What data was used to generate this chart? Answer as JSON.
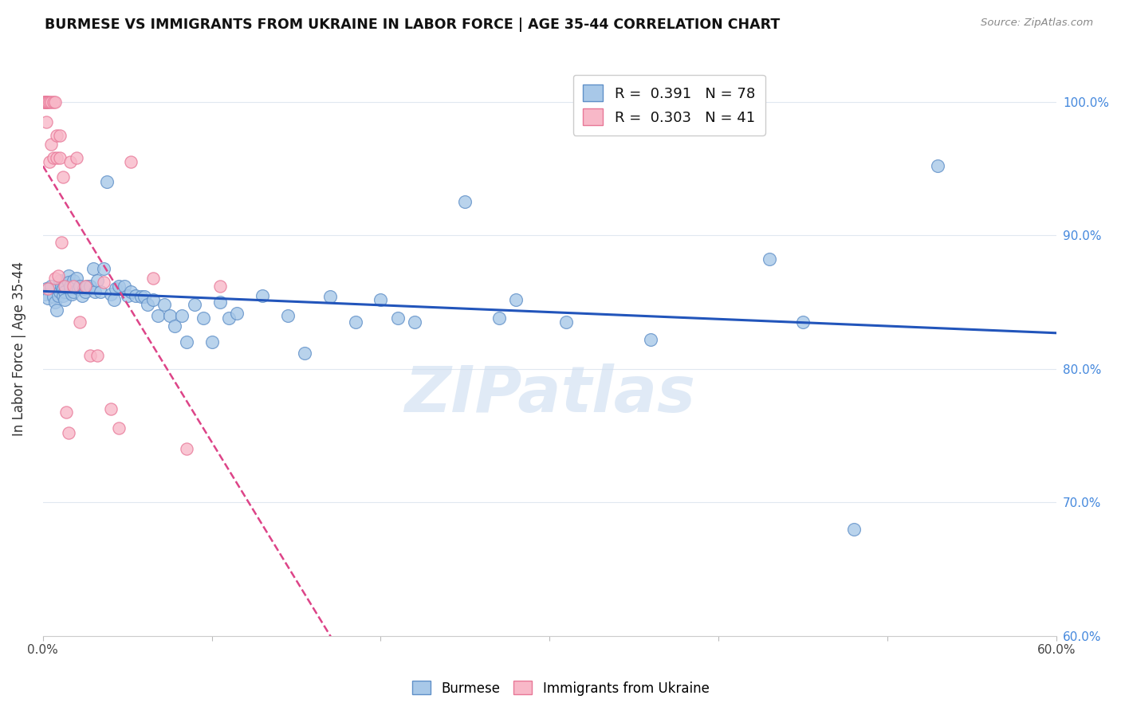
{
  "title": "BURMESE VS IMMIGRANTS FROM UKRAINE IN LABOR FORCE | AGE 35-44 CORRELATION CHART",
  "source": "Source: ZipAtlas.com",
  "ylabel": "In Labor Force | Age 35-44",
  "xlim": [
    0.0,
    0.6
  ],
  "ylim": [
    0.6,
    1.03
  ],
  "xtick_vals": [
    0.0,
    0.1,
    0.2,
    0.3,
    0.4,
    0.5,
    0.6
  ],
  "xtick_labels": [
    "0.0%",
    "",
    "",
    "",
    "",
    "",
    "60.0%"
  ],
  "ytick_vals": [
    0.6,
    0.7,
    0.8,
    0.9,
    1.0
  ],
  "ytick_labels": [
    "60.0%",
    "70.0%",
    "80.0%",
    "90.0%",
    "100.0%"
  ],
  "burmese_color": "#a8c8e8",
  "ukraine_color": "#f8b8c8",
  "burmese_edge": "#6090c8",
  "ukraine_edge": "#e87898",
  "trend_blue": "#2255bb",
  "trend_pink": "#dd4488",
  "R_burmese": 0.391,
  "N_burmese": 78,
  "R_ukraine": 0.303,
  "N_ukraine": 41,
  "burmese_x": [
    0.001,
    0.002,
    0.003,
    0.005,
    0.006,
    0.007,
    0.008,
    0.009,
    0.01,
    0.01,
    0.011,
    0.012,
    0.012,
    0.013,
    0.013,
    0.015,
    0.015,
    0.016,
    0.016,
    0.017,
    0.018,
    0.018,
    0.019,
    0.02,
    0.021,
    0.022,
    0.023,
    0.024,
    0.025,
    0.026,
    0.028,
    0.03,
    0.031,
    0.032,
    0.034,
    0.036,
    0.038,
    0.04,
    0.042,
    0.043,
    0.045,
    0.048,
    0.05,
    0.052,
    0.055,
    0.058,
    0.06,
    0.062,
    0.065,
    0.068,
    0.072,
    0.075,
    0.078,
    0.082,
    0.085,
    0.09,
    0.095,
    0.1,
    0.105,
    0.11,
    0.115,
    0.13,
    0.145,
    0.155,
    0.17,
    0.185,
    0.2,
    0.21,
    0.22,
    0.25,
    0.27,
    0.28,
    0.31,
    0.36,
    0.43,
    0.45,
    0.48,
    0.53
  ],
  "burmese_y": [
    0.856,
    0.86,
    0.853,
    0.862,
    0.854,
    0.85,
    0.844,
    0.855,
    0.858,
    0.866,
    0.862,
    0.86,
    0.855,
    0.858,
    0.852,
    0.87,
    0.865,
    0.86,
    0.862,
    0.856,
    0.866,
    0.858,
    0.862,
    0.868,
    0.86,
    0.862,
    0.855,
    0.86,
    0.858,
    0.862,
    0.862,
    0.875,
    0.858,
    0.866,
    0.858,
    0.875,
    0.94,
    0.856,
    0.852,
    0.86,
    0.862,
    0.862,
    0.855,
    0.858,
    0.855,
    0.854,
    0.854,
    0.848,
    0.852,
    0.84,
    0.848,
    0.84,
    0.832,
    0.84,
    0.82,
    0.848,
    0.838,
    0.82,
    0.85,
    0.838,
    0.842,
    0.855,
    0.84,
    0.812,
    0.854,
    0.835,
    0.852,
    0.838,
    0.835,
    0.925,
    0.838,
    0.852,
    0.835,
    0.822,
    0.882,
    0.835,
    0.68,
    0.952
  ],
  "ukraine_x": [
    0.001,
    0.001,
    0.001,
    0.002,
    0.002,
    0.002,
    0.002,
    0.003,
    0.003,
    0.004,
    0.004,
    0.005,
    0.005,
    0.006,
    0.006,
    0.007,
    0.007,
    0.008,
    0.008,
    0.009,
    0.01,
    0.01,
    0.011,
    0.012,
    0.013,
    0.014,
    0.015,
    0.016,
    0.018,
    0.02,
    0.022,
    0.025,
    0.028,
    0.032,
    0.036,
    0.04,
    0.045,
    0.052,
    0.065,
    0.085,
    0.105
  ],
  "ukraine_y": [
    1.0,
    1.0,
    1.0,
    1.0,
    1.0,
    1.0,
    0.985,
    1.0,
    0.86,
    1.0,
    0.955,
    1.0,
    0.968,
    1.0,
    0.958,
    1.0,
    0.868,
    0.975,
    0.958,
    0.87,
    0.975,
    0.958,
    0.895,
    0.944,
    0.862,
    0.768,
    0.752,
    0.955,
    0.862,
    0.958,
    0.835,
    0.862,
    0.81,
    0.81,
    0.865,
    0.77,
    0.756,
    0.955,
    0.868,
    0.74,
    0.862
  ],
  "watermark_text": "ZIPatlas",
  "watermark_color": "#ccddf0",
  "watermark_alpha": 0.6,
  "background_color": "#ffffff",
  "grid_color": "#e0e8f0"
}
